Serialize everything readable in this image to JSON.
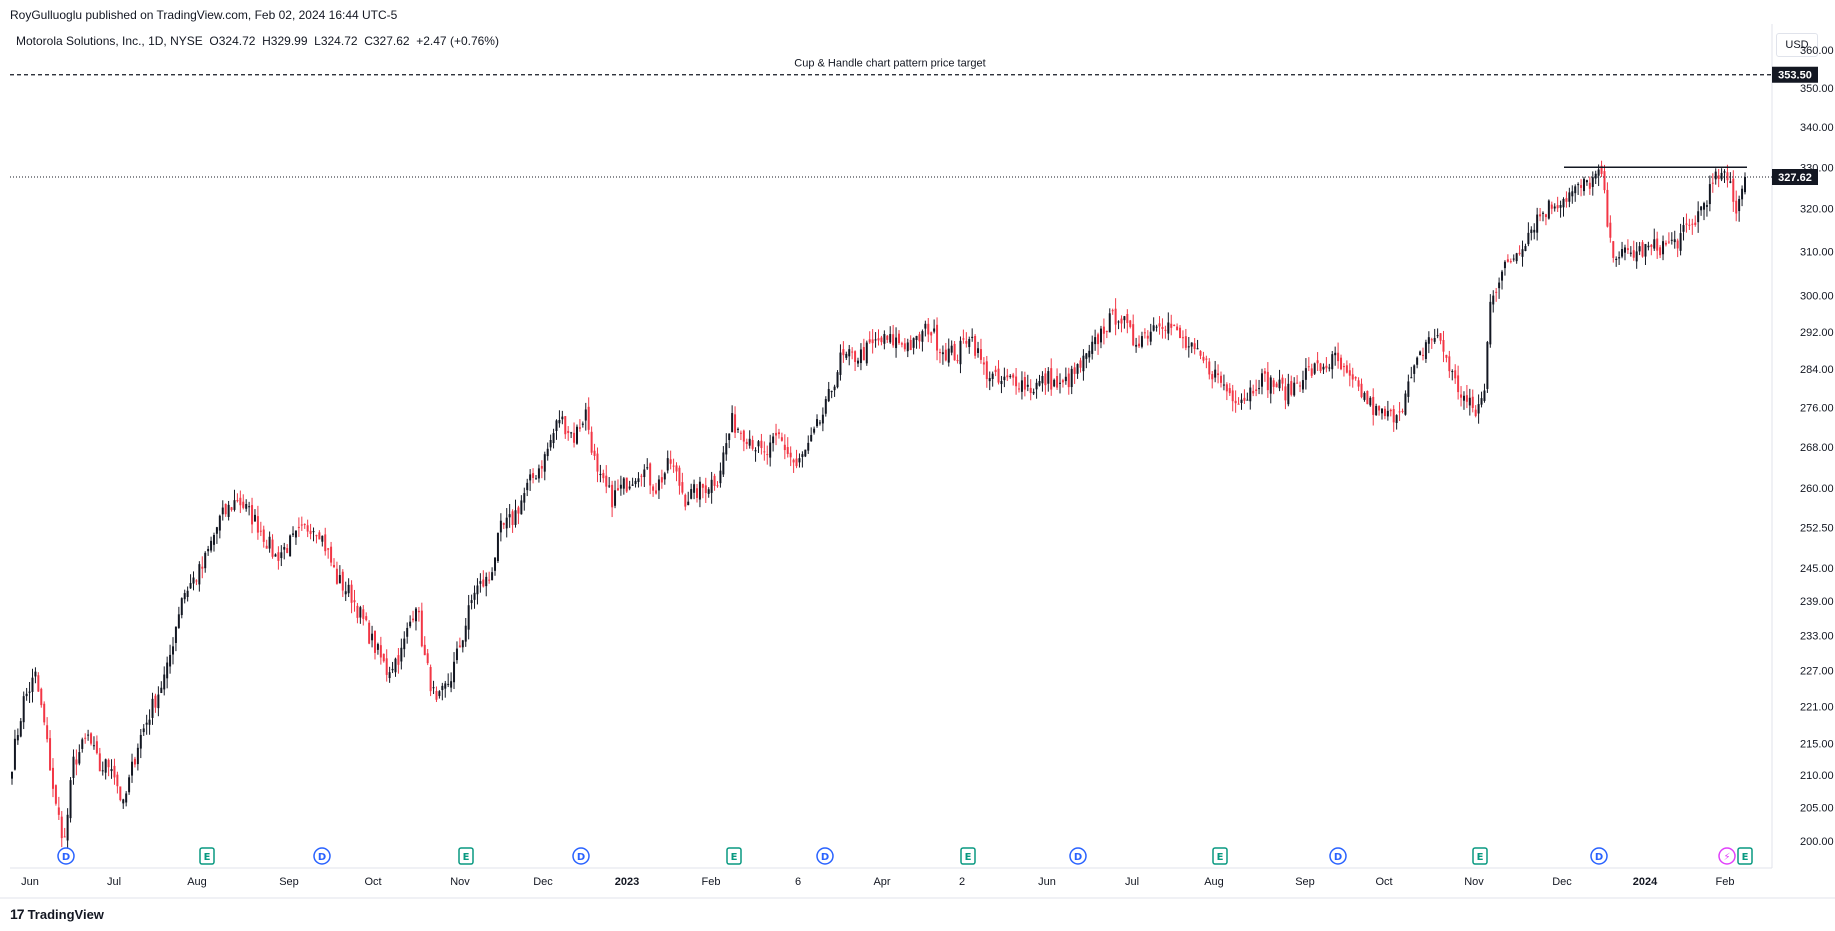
{
  "header": {
    "publisher": "RoyGulluoglu published on TradingView.com, Feb 02, 2024 16:44 UTC-5",
    "symbol": "Motorola Solutions, Inc., 1D, NYSE",
    "ohlc": "O324.72  H329.99  L324.72  C327.62  +2.47 (+0.76%)",
    "currency": "USD"
  },
  "footer": {
    "logo_text": "TradingView",
    "logo_mark": "17"
  },
  "colors": {
    "up": "#131722",
    "down": "#f23645",
    "grid": "#f0f3fa",
    "axis_text": "#131722",
    "dividend": "#2962ff",
    "earnings": "#089981",
    "split": "#e040fb"
  },
  "chart_data": {
    "type": "candlestick",
    "title": "",
    "xlabel": "",
    "ylabel": "",
    "y_axis": {
      "scale": "log",
      "range": [
        196,
        366
      ],
      "ticks": [
        "200.00",
        "205.00",
        "210.00",
        "215.00",
        "221.00",
        "227.00",
        "233.00",
        "239.00",
        "245.00",
        "252.50",
        "260.00",
        "268.00",
        "276.00",
        "284.00",
        "292.00",
        "300.00",
        "310.00",
        "320.00",
        "330.00",
        "340.00",
        "350.00",
        "360.00"
      ]
    },
    "x_axis": {
      "labels": [
        "Jun",
        "Jul",
        "Aug",
        "Sep",
        "Oct",
        "Nov",
        "Dec",
        "2023",
        "Feb",
        "6",
        "Apr",
        "2",
        "Jun",
        "Jul",
        "Aug",
        "Sep",
        "Oct",
        "Nov",
        "Dec",
        "2024",
        "Feb"
      ],
      "bold_labels": [
        "2023",
        "2024"
      ]
    },
    "price_anchors": [
      [
        0,
        212
      ],
      [
        4,
        222
      ],
      [
        8,
        226
      ],
      [
        11,
        218
      ],
      [
        15,
        205
      ],
      [
        18,
        200
      ],
      [
        21,
        212
      ],
      [
        26,
        216
      ],
      [
        30,
        211
      ],
      [
        34,
        212
      ],
      [
        38,
        205
      ],
      [
        43,
        215
      ],
      [
        48,
        221
      ],
      [
        53,
        227
      ],
      [
        58,
        240
      ],
      [
        65,
        245
      ],
      [
        71,
        254
      ],
      [
        77,
        258
      ],
      [
        84,
        253
      ],
      [
        90,
        247
      ],
      [
        96,
        250
      ],
      [
        102,
        253
      ],
      [
        105,
        252
      ],
      [
        111,
        243
      ],
      [
        116,
        240
      ],
      [
        123,
        232
      ],
      [
        128,
        227
      ],
      [
        133,
        230
      ],
      [
        138,
        239
      ],
      [
        141,
        229
      ],
      [
        145,
        221
      ],
      [
        150,
        226
      ],
      [
        154,
        233
      ],
      [
        158,
        241
      ],
      [
        163,
        243
      ],
      [
        167,
        252
      ],
      [
        171,
        254
      ],
      [
        176,
        260
      ],
      [
        182,
        266
      ],
      [
        187,
        274
      ],
      [
        192,
        270
      ],
      [
        196,
        275
      ],
      [
        200,
        262
      ],
      [
        205,
        258
      ],
      [
        210,
        261
      ],
      [
        215,
        264
      ],
      [
        220,
        260
      ],
      [
        225,
        265
      ],
      [
        230,
        258
      ],
      [
        236,
        260
      ],
      [
        241,
        262
      ],
      [
        246,
        273
      ],
      [
        252,
        270
      ],
      [
        257,
        266
      ],
      [
        262,
        270
      ],
      [
        268,
        264
      ],
      [
        273,
        269
      ],
      [
        278,
        276
      ],
      [
        283,
        286
      ],
      [
        290,
        287
      ],
      [
        296,
        290
      ],
      [
        302,
        290
      ],
      [
        308,
        289
      ],
      [
        313,
        293
      ],
      [
        318,
        288
      ],
      [
        323,
        287
      ],
      [
        327,
        292
      ],
      [
        332,
        284
      ],
      [
        337,
        281
      ],
      [
        343,
        282
      ],
      [
        348,
        280
      ],
      [
        354,
        282
      ],
      [
        358,
        280
      ],
      [
        363,
        283
      ],
      [
        368,
        287
      ],
      [
        373,
        293
      ],
      [
        378,
        296
      ],
      [
        383,
        290
      ],
      [
        388,
        292
      ],
      [
        392,
        295
      ],
      [
        396,
        293
      ],
      [
        401,
        289
      ],
      [
        406,
        286
      ],
      [
        411,
        283
      ],
      [
        416,
        279
      ],
      [
        421,
        278
      ],
      [
        426,
        282
      ],
      [
        431,
        281
      ],
      [
        436,
        279
      ],
      [
        441,
        283
      ],
      [
        446,
        284
      ],
      [
        452,
        286
      ],
      [
        456,
        282
      ],
      [
        461,
        279
      ],
      [
        466,
        275
      ],
      [
        471,
        274
      ],
      [
        475,
        277
      ],
      [
        480,
        285
      ],
      [
        484,
        291
      ],
      [
        488,
        290
      ],
      [
        493,
        281
      ],
      [
        497,
        277
      ],
      [
        500,
        275
      ],
      [
        503,
        279
      ],
      [
        505,
        300
      ],
      [
        510,
        306
      ],
      [
        516,
        312
      ],
      [
        521,
        318
      ],
      [
        526,
        321
      ],
      [
        531,
        323
      ],
      [
        536,
        325
      ],
      [
        540,
        327
      ],
      [
        543,
        328
      ],
      [
        546,
        311
      ],
      [
        550,
        309
      ],
      [
        556,
        310
      ],
      [
        562,
        311
      ],
      [
        568,
        312
      ],
      [
        574,
        316
      ],
      [
        579,
        323
      ],
      [
        583,
        328
      ],
      [
        587,
        326
      ],
      [
        589,
        320
      ],
      [
        592,
        327.62
      ]
    ],
    "horizontal_lines": [
      {
        "label": "Cup & Handle chart pattern price target",
        "value": 353.5,
        "style": "dashed"
      },
      {
        "label": "",
        "value": 330,
        "style": "solid-segment"
      }
    ],
    "last_price": 327.62,
    "price_labels": [
      "353.50",
      "327.62"
    ],
    "events": [
      {
        "type": "dividend",
        "label": "D"
      },
      {
        "type": "earnings",
        "label": "E"
      },
      {
        "type": "dividend",
        "label": "D"
      },
      {
        "type": "earnings",
        "label": "E"
      },
      {
        "type": "dividend",
        "label": "D"
      },
      {
        "type": "earnings",
        "label": "E"
      },
      {
        "type": "dividend",
        "label": "D"
      },
      {
        "type": "earnings",
        "label": "E"
      },
      {
        "type": "dividend",
        "label": "D"
      },
      {
        "type": "earnings",
        "label": "E"
      },
      {
        "type": "dividend",
        "label": "D"
      },
      {
        "type": "earnings",
        "label": "E"
      },
      {
        "type": "dividend",
        "label": "D"
      },
      {
        "type": "split",
        "label": "⚡"
      },
      {
        "type": "earnings",
        "label": "E"
      }
    ]
  }
}
